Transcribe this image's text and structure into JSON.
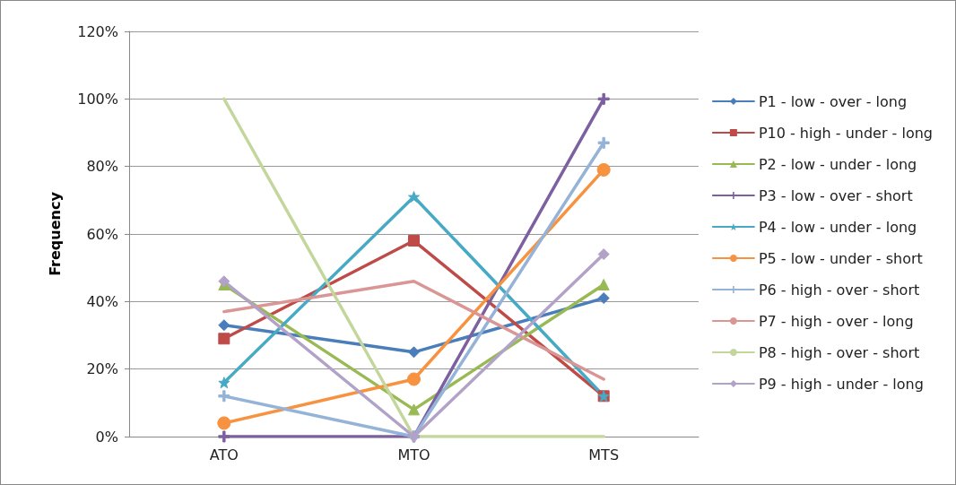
{
  "chart_data": {
    "type": "line",
    "ylabel": "Frequency",
    "categories": [
      "ATO",
      "MTO",
      "MTS"
    ],
    "ylim": [
      0,
      120
    ],
    "yticks": [
      {
        "value": 0,
        "label": "0%"
      },
      {
        "value": 20,
        "label": "20%"
      },
      {
        "value": 40,
        "label": "40%"
      },
      {
        "value": 60,
        "label": "60%"
      },
      {
        "value": 80,
        "label": "80%"
      },
      {
        "value": 100,
        "label": "100%"
      },
      {
        "value": 120,
        "label": "120%"
      }
    ],
    "grid": "y",
    "legend": "right",
    "line_style": "solid",
    "series": [
      {
        "name": "P1 - low - over - long",
        "color": "#4a7ebb",
        "marker": "diamond",
        "values": [
          33,
          25,
          41
        ]
      },
      {
        "name": "P10 - high - under - long",
        "color": "#be4b48",
        "marker": "square",
        "values": [
          29,
          58,
          12
        ]
      },
      {
        "name": "P2 - low - under - long",
        "color": "#98b954",
        "marker": "triangle",
        "values": [
          45,
          8,
          45
        ]
      },
      {
        "name": "P3 - low - over - short",
        "color": "#7d60a0",
        "marker": "cross",
        "values": [
          0,
          0,
          100
        ]
      },
      {
        "name": "P4 - low - under - long",
        "color": "#46aac5",
        "marker": "star",
        "values": [
          16,
          71,
          12
        ]
      },
      {
        "name": "P5 - low - under - short",
        "color": "#f69240",
        "marker": "circle",
        "values": [
          4,
          17,
          79
        ]
      },
      {
        "name": "P6 - high - over - short",
        "color": "#95b3d7",
        "marker": "cross",
        "values": [
          12,
          0,
          87
        ]
      },
      {
        "name": "P7 - high - over - long",
        "color": "#da9694",
        "marker": "none",
        "values": [
          37,
          46,
          17
        ]
      },
      {
        "name": "P8 - high - over - short",
        "color": "#c3d69b",
        "marker": "none",
        "values": [
          100,
          0,
          0
        ]
      },
      {
        "name": "P9 - high - under - long",
        "color": "#b2a2c7",
        "marker": "diamond",
        "values": [
          46,
          0,
          54
        ]
      }
    ]
  }
}
